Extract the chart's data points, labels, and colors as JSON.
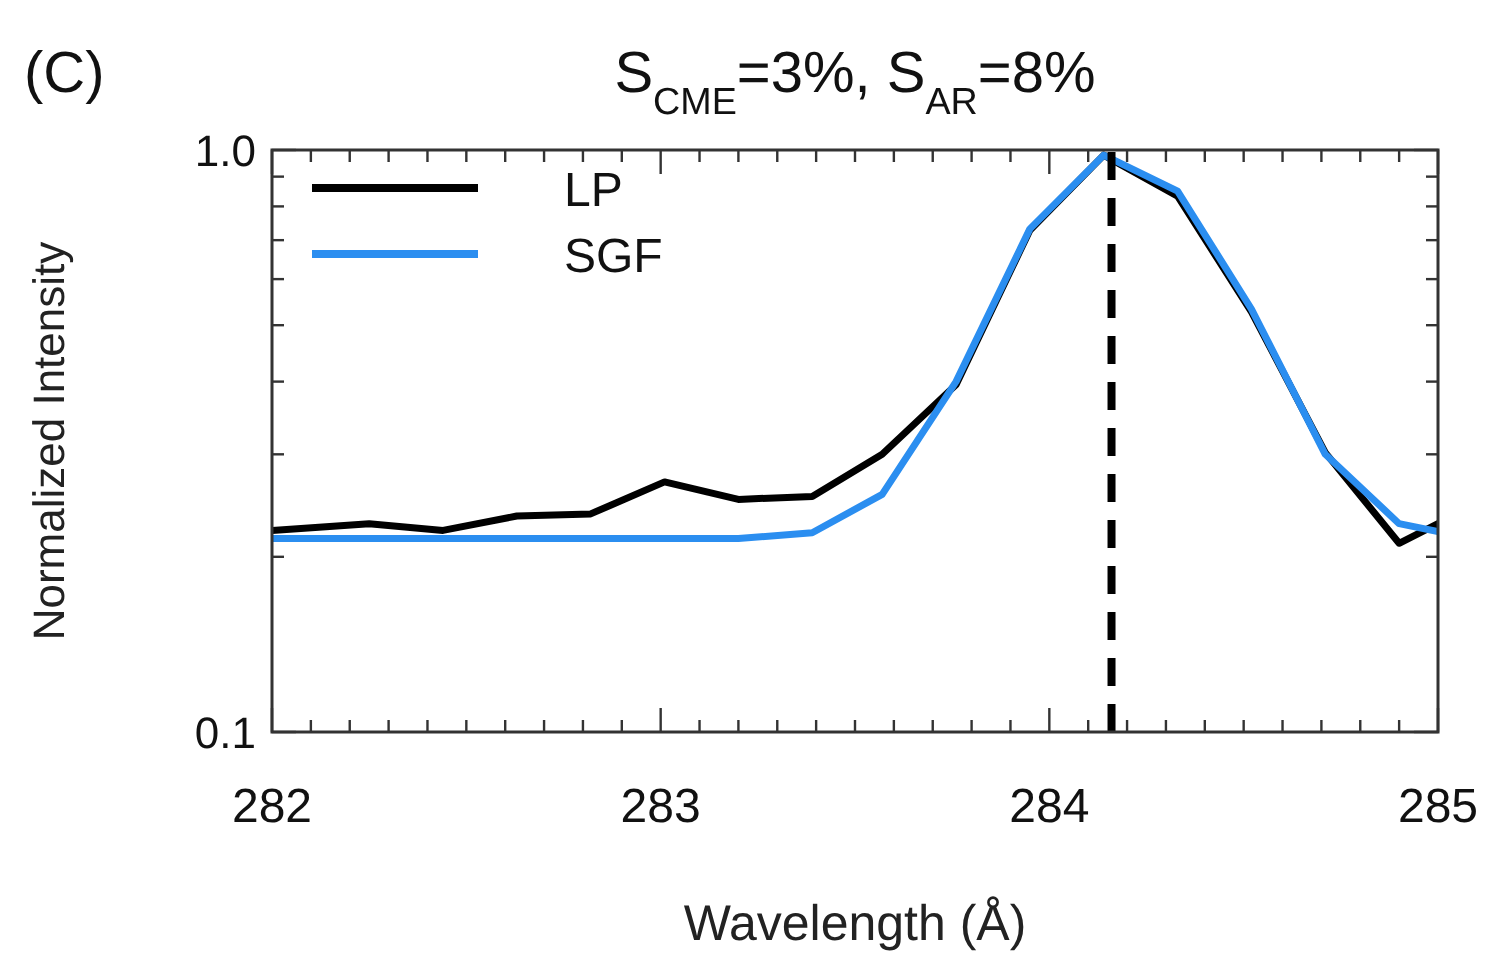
{
  "chart_data": {
    "type": "line",
    "title": "S$_{CME}$=3%, S$_{AR}$=8%",
    "xlabel": "Wavelength (Å)",
    "ylabel": "Normalized Intensity",
    "annotations": [
      "(C)"
    ],
    "log": "y",
    "legend": "top left",
    "line_style": "solid",
    "marker": "none",
    "grid": false,
    "xlim": [
      282,
      285
    ],
    "ylim": [
      0.1,
      1.0
    ],
    "xticks": [
      282,
      {
        "value": 282.1,
        "label": null
      },
      {
        "value": 282.2,
        "label": null
      },
      {
        "value": 282.3,
        "label": null
      },
      {
        "value": 282.4,
        "label": null
      },
      {
        "value": 282.5,
        "label": null
      },
      {
        "value": 282.6,
        "label": null
      },
      {
        "value": 282.7,
        "label": null
      },
      {
        "value": 282.8,
        "label": null
      },
      {
        "value": 282.9,
        "label": null
      },
      283,
      {
        "value": 283.1,
        "label": null
      },
      {
        "value": 283.2,
        "label": null
      },
      {
        "value": 283.3,
        "label": null
      },
      {
        "value": 283.4,
        "label": null
      },
      {
        "value": 283.5,
        "label": null
      },
      {
        "value": 283.6,
        "label": null
      },
      {
        "value": 283.7,
        "label": null
      },
      {
        "value": 283.8,
        "label": null
      },
      {
        "value": 283.9,
        "label": null
      },
      284,
      {
        "value": 284.1,
        "label": null
      },
      {
        "value": 284.2,
        "label": null
      },
      {
        "value": 284.3,
        "label": null
      },
      {
        "value": 284.4,
        "label": null
      },
      {
        "value": 284.5,
        "label": null
      },
      {
        "value": 284.6,
        "label": null
      },
      {
        "value": 284.7,
        "label": null
      },
      {
        "value": 284.8,
        "label": null
      },
      {
        "value": 284.9,
        "label": null
      },
      285
    ],
    "yticks": [
      0.1,
      {
        "value": 0.2,
        "label": null
      },
      {
        "value": 0.3,
        "label": null
      },
      {
        "value": 0.4,
        "label": null
      },
      {
        "value": 0.5,
        "label": null
      },
      {
        "value": 0.6,
        "label": null
      },
      {
        "value": 0.7,
        "label": null
      },
      {
        "value": 0.8,
        "label": null
      },
      {
        "value": 0.9,
        "label": null
      },
      {
        "value": 1.0,
        "label": "1.0"
      }
    ],
    "ref_lines": [
      {
        "axis": "x",
        "value": 284.16,
        "color": "#000000",
        "line_style": "dashed"
      }
    ],
    "series": [
      {
        "name": "LP",
        "color": "#000000",
        "x": [
          282.0,
          282.25,
          282.44,
          282.63,
          282.82,
          283.01,
          283.2,
          283.39,
          283.57,
          283.76,
          283.95,
          284.14,
          284.33,
          284.52,
          284.71,
          284.9,
          285.0
        ],
        "values": [
          0.222,
          0.228,
          0.222,
          0.235,
          0.237,
          0.269,
          0.251,
          0.254,
          0.3,
          0.395,
          0.728,
          0.98,
          0.833,
          0.527,
          0.302,
          0.211,
          0.228
        ]
      },
      {
        "name": "SGF",
        "color": "#2b8ef0",
        "x": [
          282.0,
          283.2,
          283.39,
          283.57,
          283.76,
          283.95,
          284.14,
          284.33,
          284.52,
          284.71,
          284.9,
          285.0
        ],
        "values": [
          0.215,
          0.215,
          0.22,
          0.256,
          0.4,
          0.732,
          0.98,
          0.85,
          0.533,
          0.3,
          0.228,
          0.221
        ]
      }
    ]
  }
}
